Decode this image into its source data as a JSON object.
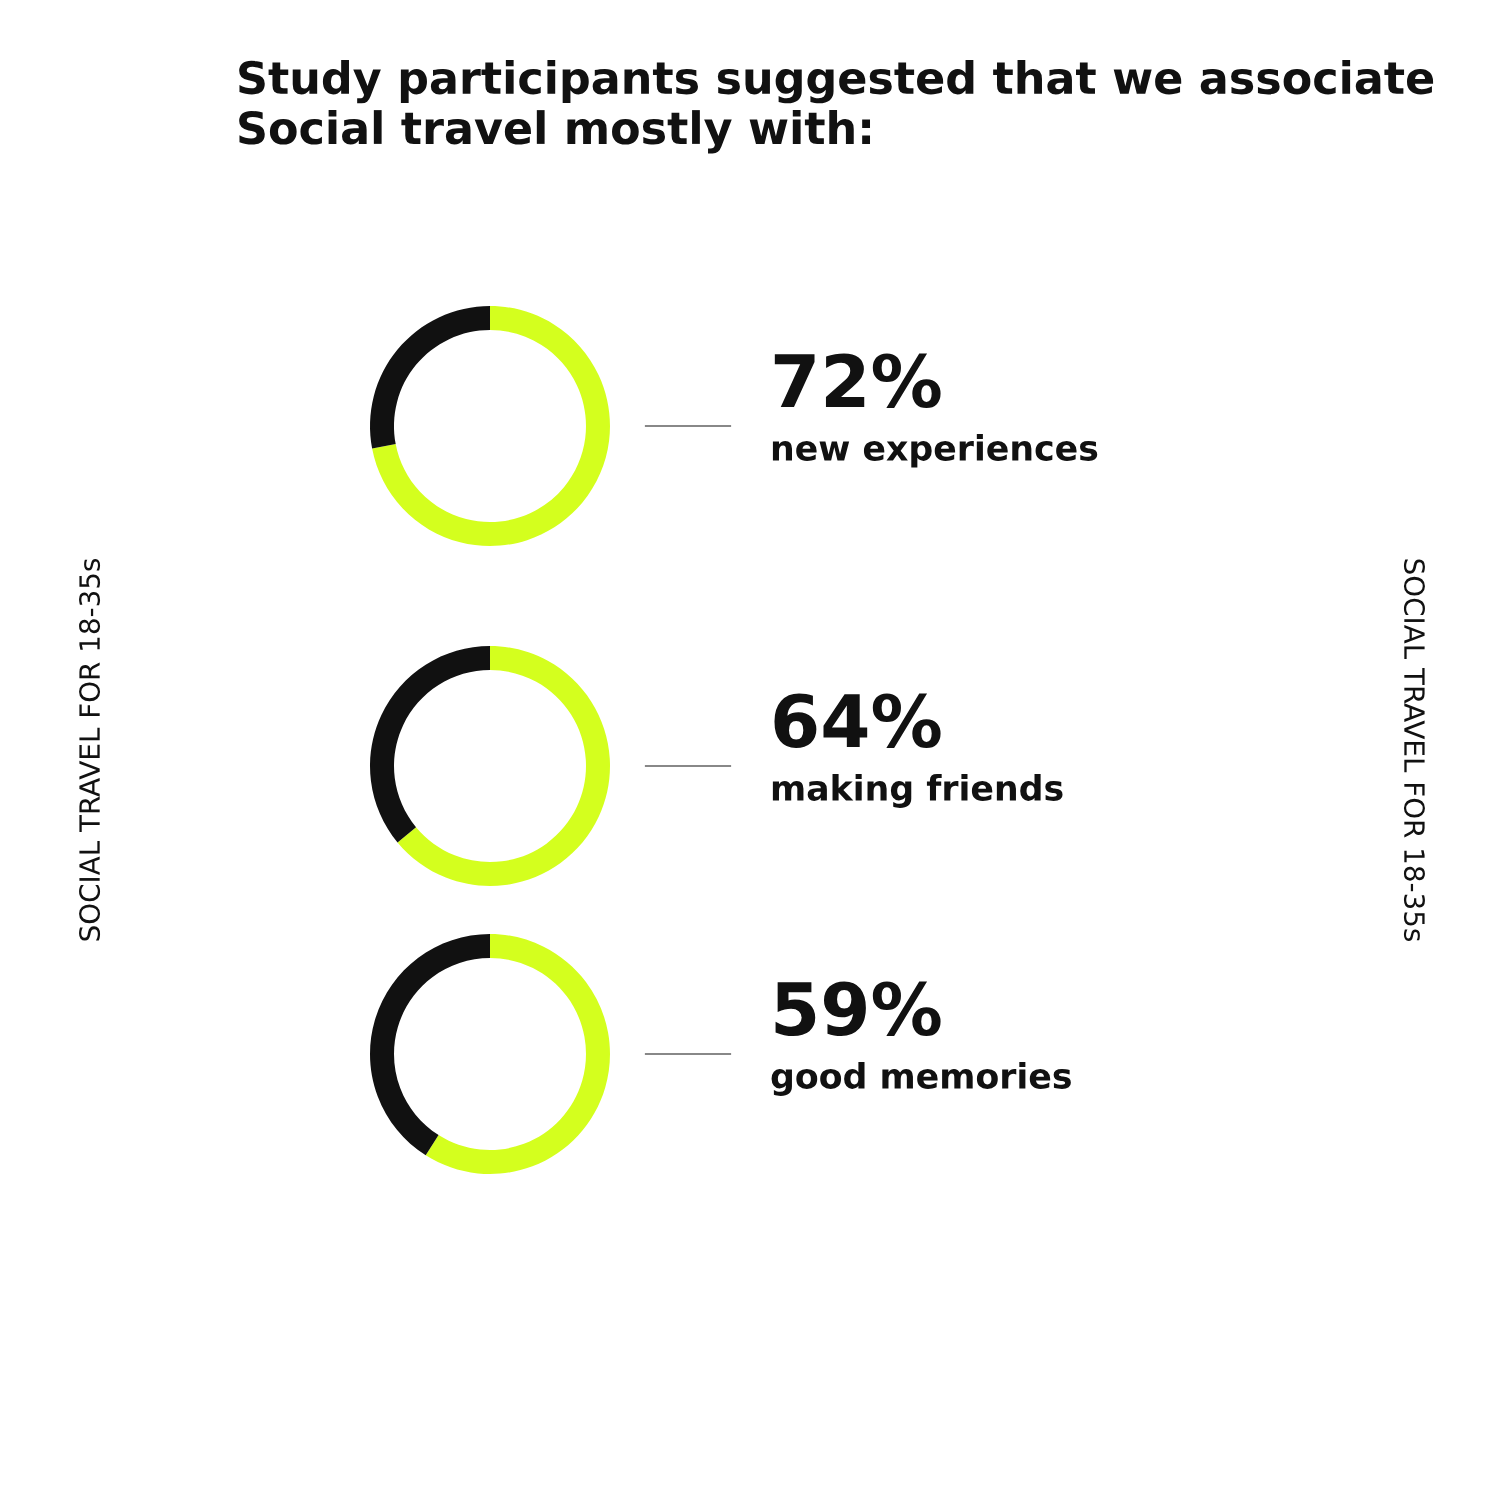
{
  "chart_data": [
    {
      "type": "donut",
      "title": "Study participants suggested that we associate Social travel mostly with:",
      "categories": [
        "new experiences",
        null
      ],
      "values": [
        72,
        28
      ],
      "colors": [
        "#d4ff1e",
        "#111111"
      ],
      "value_labels": [
        "72%",
        null
      ],
      "annotations": [
        "SOCIAL TRAVEL FOR 18-35s",
        "SOCIAL TRAVEL FOR 18-35s"
      ]
    },
    {
      "type": "donut",
      "categories": [
        "making friends",
        null
      ],
      "values": [
        64,
        36
      ],
      "colors": [
        "#d4ff1e",
        "#111111"
      ],
      "value_labels": [
        "64%",
        null
      ]
    },
    {
      "type": "donut",
      "categories": [
        "good memories",
        null
      ],
      "values": [
        59,
        41
      ],
      "colors": [
        "#d4ff1e",
        "#111111"
      ],
      "value_labels": [
        "59%",
        null
      ]
    }
  ]
}
